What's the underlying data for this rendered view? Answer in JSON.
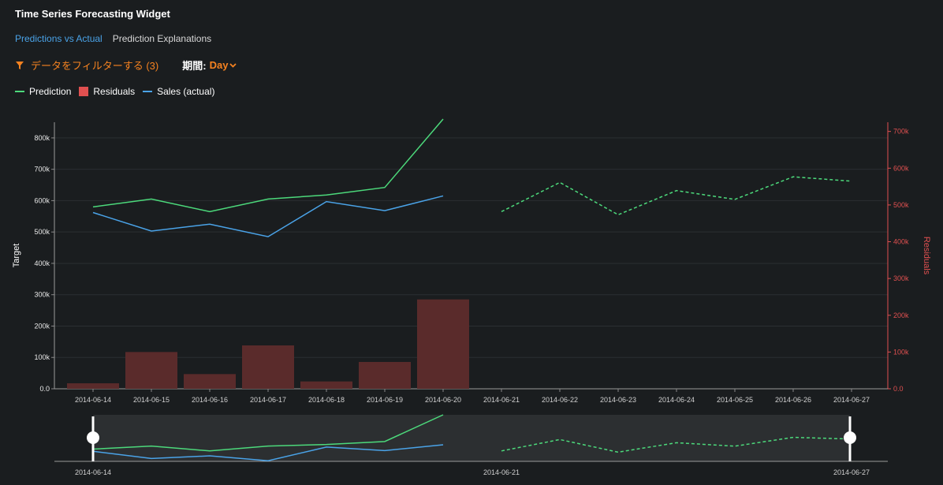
{
  "widget": {
    "title": "Time Series Forecasting Widget"
  },
  "tabs": [
    {
      "label": "Predictions vs Actual",
      "active": true
    },
    {
      "label": "Prediction Explanations",
      "active": false
    }
  ],
  "filter": {
    "label": "データをフィルターする (3)",
    "icon": "filter-icon"
  },
  "period": {
    "label": "期間:",
    "value": "Day",
    "icon": "chevron-down-icon"
  },
  "colors": {
    "prediction": "#4cd97b",
    "residuals": "#e05050",
    "residual_bar": "#5a2b2b",
    "actual": "#4aa3e8",
    "accent": "#f58220"
  },
  "chart_data": {
    "type": "line",
    "title": "",
    "xlabel": "",
    "ylabel": "Target",
    "y2label": "Residuals",
    "categories": [
      "2014-06-14",
      "2014-06-15",
      "2014-06-16",
      "2014-06-17",
      "2014-06-18",
      "2014-06-19",
      "2014-06-20",
      "2014-06-21",
      "2014-06-22",
      "2014-06-23",
      "2014-06-24",
      "2014-06-25",
      "2014-06-26",
      "2014-06-27"
    ],
    "y_ticks": [
      "0.0",
      "100k",
      "200k",
      "300k",
      "400k",
      "500k",
      "600k",
      "700k",
      "800k"
    ],
    "y2_ticks": [
      "0.0",
      "100k",
      "200k",
      "300k",
      "400k",
      "500k",
      "600k",
      "700k"
    ],
    "ylim": [
      0,
      850000
    ],
    "y2lim": [
      0,
      725000
    ],
    "series": [
      {
        "name": "Prediction",
        "kind": "line",
        "values": [
          580000,
          605000,
          565000,
          605000,
          618000,
          642000,
          860000,
          null,
          null,
          null,
          null,
          null,
          null,
          null
        ]
      },
      {
        "name": "Prediction",
        "kind": "forecast",
        "values": [
          null,
          null,
          null,
          null,
          null,
          null,
          null,
          565000,
          658000,
          555000,
          632000,
          604000,
          676000,
          662000
        ]
      },
      {
        "name": "Sales (actual)",
        "kind": "line",
        "values": [
          562000,
          503000,
          525000,
          485000,
          597000,
          568000,
          615000,
          null,
          null,
          null,
          null,
          null,
          null,
          null
        ]
      },
      {
        "name": "Residuals",
        "kind": "bar",
        "values": [
          15000,
          100000,
          40000,
          118000,
          20000,
          73000,
          243000,
          null,
          null,
          null,
          null,
          null,
          null,
          null
        ]
      }
    ],
    "navigator": {
      "start_label": "2014-06-14",
      "mid_label": "2014-06-21",
      "end_label": "2014-06-27"
    },
    "grid": true,
    "legend": "top-left"
  }
}
